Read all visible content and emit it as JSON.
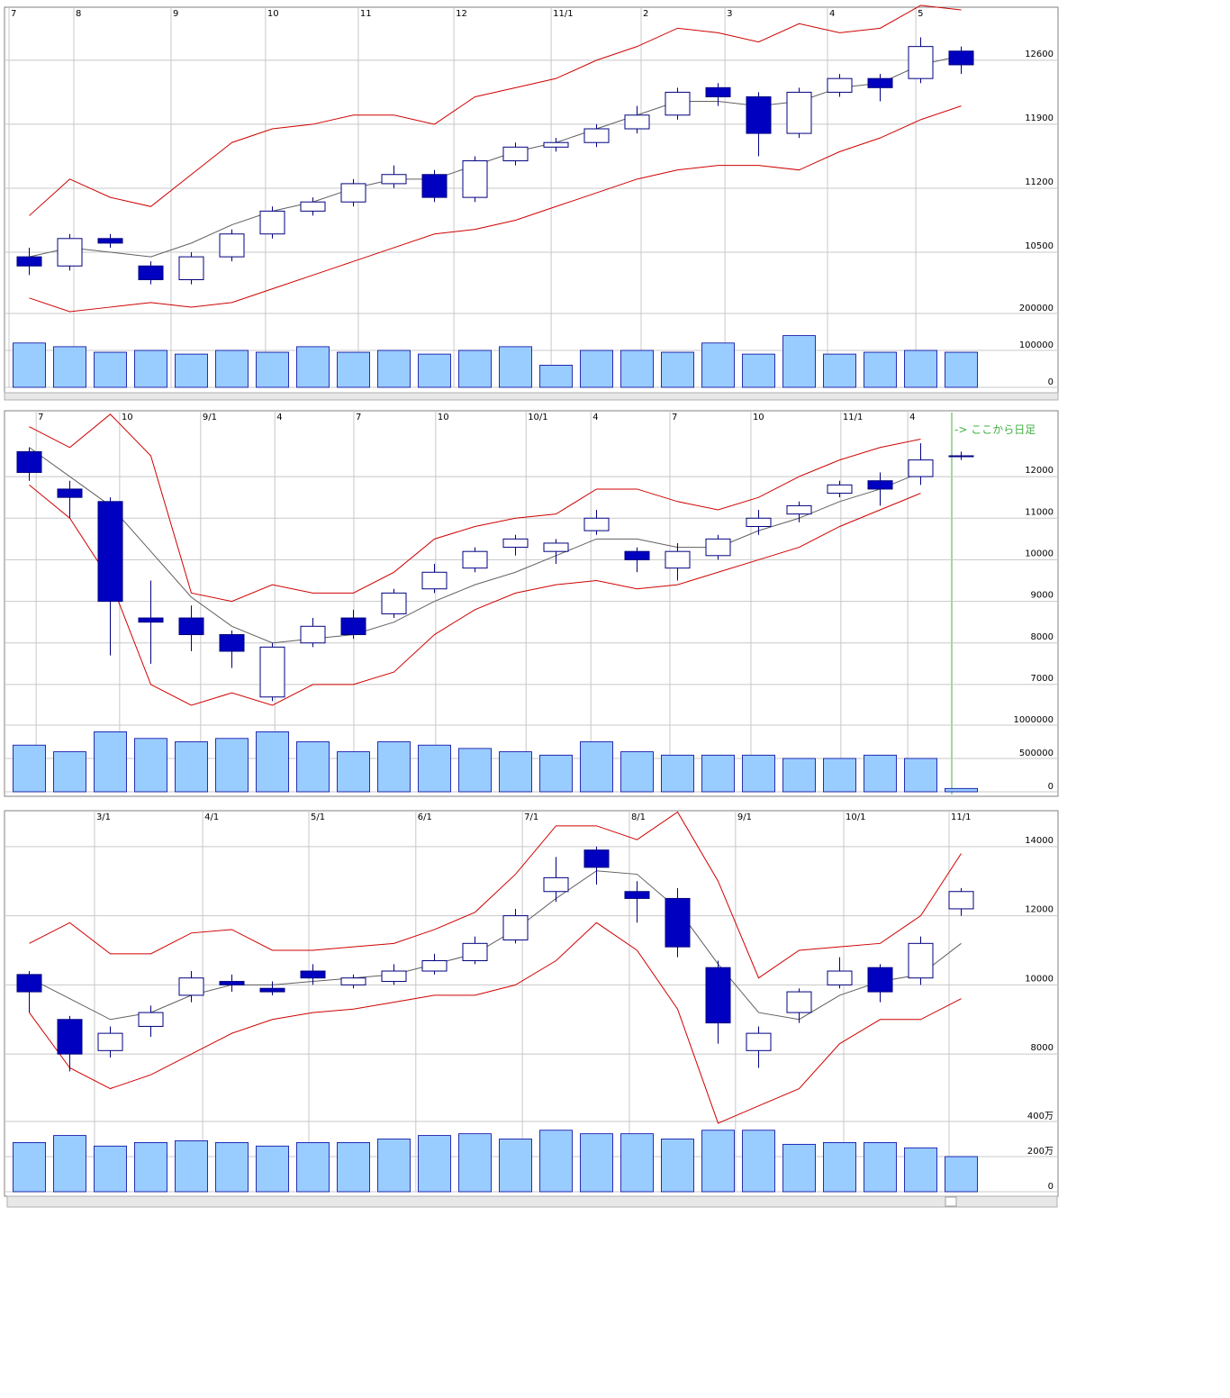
{
  "chart_data": [
    {
      "type": "candlestick",
      "xlim": [
        0,
        24
      ],
      "xticks": [
        {
          "value": 0,
          "label": "7"
        },
        {
          "value": 1.6,
          "label": "8"
        },
        {
          "value": 4.0,
          "label": "9"
        },
        {
          "value": 6.33,
          "label": "10"
        },
        {
          "value": 8.62,
          "label": "11"
        },
        {
          "value": 10.98,
          "label": "12"
        },
        {
          "value": 13.38,
          "label": "11/1"
        },
        {
          "value": 15.6,
          "label": "2"
        },
        {
          "value": 17.67,
          "label": "3"
        },
        {
          "value": 20.2,
          "label": "4"
        },
        {
          "value": 22.38,
          "label": "5"
        }
      ],
      "ylim": [
        9860,
        13180
      ],
      "yticks": [
        10500,
        11200,
        11900,
        12600
      ],
      "open": [
        10450,
        10350,
        10650,
        10350,
        10200,
        10450,
        10700,
        10950,
        11050,
        11250,
        11350,
        11100,
        11500,
        11650,
        11700,
        11850,
        12000,
        12300,
        12200,
        11800,
        12250,
        12400,
        12400,
        12700
      ],
      "high": [
        10550,
        10700,
        10700,
        10400,
        10500,
        10750,
        11000,
        11100,
        11300,
        11450,
        11400,
        11550,
        11700,
        11750,
        11900,
        12100,
        12300,
        12350,
        12250,
        12300,
        12450,
        12450,
        12850,
        12750
      ],
      "low": [
        10250,
        10300,
        10550,
        10150,
        10150,
        10400,
        10650,
        10900,
        11000,
        11200,
        11050,
        11050,
        11450,
        11600,
        11650,
        11800,
        11950,
        12100,
        11550,
        11750,
        12200,
        12150,
        12350,
        12450
      ],
      "close": [
        10350,
        10650,
        10600,
        10200,
        10450,
        10700,
        10950,
        11050,
        11250,
        11350,
        11100,
        11500,
        11650,
        11700,
        11850,
        12000,
        12250,
        12200,
        11800,
        12250,
        12400,
        12300,
        12750,
        12550
      ],
      "bands": [
        {
          "color": "#d00000",
          "values": [
            10900,
            11300,
            11100,
            11000,
            11350,
            11700,
            11850,
            11900,
            12000,
            12000,
            11900,
            12200,
            12300,
            12400,
            12600,
            12750,
            12950,
            12900,
            12800,
            13000,
            12900,
            12950,
            13200,
            13150
          ]
        },
        {
          "color": "#606060",
          "values": [
            10450,
            10550,
            10500,
            10450,
            10600,
            10800,
            10950,
            11050,
            11200,
            11300,
            11300,
            11450,
            11600,
            11700,
            11850,
            12000,
            12150,
            12150,
            12100,
            12150,
            12300,
            12350,
            12550,
            12650
          ]
        },
        {
          "color": "#d00000",
          "values": [
            10000,
            9850,
            9900,
            9950,
            9900,
            9950,
            10100,
            10250,
            10400,
            10550,
            10700,
            10750,
            10850,
            11000,
            11150,
            11300,
            11400,
            11450,
            11450,
            11400,
            11600,
            11750,
            11950,
            12100
          ]
        }
      ],
      "volume": {
        "color": "#99ccff",
        "ylim": [
          0,
          200000
        ],
        "yticks": [
          0,
          100000,
          200000
        ],
        "values": [
          120000,
          110000,
          95000,
          100000,
          90000,
          100000,
          95000,
          110000,
          95000,
          100000,
          90000,
          100000,
          110000,
          60000,
          100000,
          100000,
          95000,
          120000,
          90000,
          140000,
          90000,
          95000,
          100000,
          95000
        ]
      }
    },
    {
      "type": "candlestick",
      "xlim": [
        0,
        24
      ],
      "xticks": [
        {
          "value": 0.67,
          "label": "7"
        },
        {
          "value": 2.73,
          "label": "10"
        },
        {
          "value": 4.73,
          "label": "9/1"
        },
        {
          "value": 6.56,
          "label": "4"
        },
        {
          "value": 8.51,
          "label": "7"
        },
        {
          "value": 10.53,
          "label": "10"
        },
        {
          "value": 12.76,
          "label": "10/1"
        },
        {
          "value": 14.36,
          "label": "4"
        },
        {
          "value": 16.31,
          "label": "7"
        },
        {
          "value": 18.31,
          "label": "10"
        },
        {
          "value": 20.53,
          "label": "11/1"
        },
        {
          "value": 22.18,
          "label": "4"
        }
      ],
      "ylim": [
        6240,
        13540
      ],
      "yticks": [
        7000,
        8000,
        9000,
        10000,
        11000,
        12000
      ],
      "annotation": "-> ここから日足",
      "open": [
        12600,
        11700,
        11400,
        8600,
        8600,
        8200,
        6700,
        8000,
        8600,
        8700,
        9300,
        9800,
        10300,
        10200,
        10700,
        10200,
        9800,
        10100,
        10800,
        11100,
        11600,
        11900,
        12000,
        12500
      ],
      "high": [
        12700,
        11900,
        11500,
        9500,
        8900,
        8300,
        8000,
        8600,
        8800,
        9300,
        9900,
        10300,
        10600,
        10500,
        11200,
        10300,
        10400,
        10600,
        11200,
        11400,
        11900,
        12100,
        12800,
        12600
      ],
      "low": [
        11900,
        11000,
        7700,
        7500,
        7800,
        7400,
        6600,
        7900,
        8100,
        8600,
        9200,
        9700,
        10100,
        9900,
        10600,
        9700,
        9500,
        10000,
        10600,
        10900,
        11500,
        11300,
        11800,
        12400
      ],
      "close": [
        12100,
        11500,
        9000,
        8500,
        8200,
        7800,
        7900,
        8400,
        8200,
        9200,
        9700,
        10200,
        10500,
        10400,
        11000,
        10000,
        10200,
        10500,
        11000,
        11300,
        11800,
        11700,
        12400,
        12500
      ],
      "bands": [
        {
          "color": "#d00000",
          "values": [
            13200,
            12700,
            13500,
            12500,
            9200,
            9000,
            9400,
            9200,
            9200,
            9700,
            10500,
            10800,
            11000,
            11100,
            11700,
            11700,
            11400,
            11200,
            11500,
            12000,
            12400,
            12700,
            12900,
            null
          ]
        },
        {
          "color": "#606060",
          "values": [
            12700,
            12000,
            11300,
            10200,
            9100,
            8400,
            8000,
            8100,
            8200,
            8500,
            9000,
            9400,
            9700,
            10100,
            10500,
            10500,
            10300,
            10300,
            10700,
            11000,
            11400,
            11700,
            12100,
            null
          ]
        },
        {
          "color": "#d00000",
          "values": [
            11800,
            11000,
            9500,
            7000,
            6500,
            6800,
            6500,
            7000,
            7000,
            7300,
            8200,
            8800,
            9200,
            9400,
            9500,
            9300,
            9400,
            9700,
            10000,
            10300,
            10800,
            11200,
            11600,
            null
          ]
        }
      ],
      "volume": {
        "color": "#99ccff",
        "ylim": [
          0,
          1000000
        ],
        "yticks": [
          0,
          500000,
          1000000
        ],
        "values": [
          700000,
          600000,
          900000,
          800000,
          750000,
          800000,
          900000,
          750000,
          600000,
          750000,
          700000,
          650000,
          600000,
          550000,
          750000,
          600000,
          550000,
          550000,
          550000,
          500000,
          500000,
          550000,
          500000,
          50000
        ]
      }
    },
    {
      "type": "candlestick",
      "xlim": [
        0,
        24
      ],
      "xticks": [
        {
          "value": 2.11,
          "label": "3/1"
        },
        {
          "value": 4.78,
          "label": "4/1"
        },
        {
          "value": 7.4,
          "label": "5/1"
        },
        {
          "value": 10.04,
          "label": "6/1"
        },
        {
          "value": 12.67,
          "label": "7/1"
        },
        {
          "value": 15.31,
          "label": "8/1"
        },
        {
          "value": 17.93,
          "label": "9/1"
        },
        {
          "value": 20.6,
          "label": "10/1"
        },
        {
          "value": 23.2,
          "label": "11/1"
        }
      ],
      "ylim": [
        6050,
        14960
      ],
      "yticks": [
        8000,
        10000,
        12000,
        14000
      ],
      "open": [
        10300,
        9000,
        8100,
        8800,
        9700,
        10100,
        9900,
        10400,
        10000,
        10100,
        10400,
        10700,
        11300,
        12700,
        13900,
        12700,
        12500,
        10500,
        8100,
        9200,
        10000,
        10500,
        10200,
        12200
      ],
      "high": [
        10400,
        9100,
        8800,
        9400,
        10400,
        10300,
        10100,
        10600,
        10300,
        10600,
        10900,
        11400,
        12200,
        13700,
        14000,
        13000,
        12800,
        10700,
        8800,
        9900,
        10800,
        10600,
        11400,
        12800
      ],
      "low": [
        9200,
        7500,
        7900,
        8500,
        9500,
        9800,
        9700,
        10000,
        9900,
        10000,
        10300,
        10600,
        11200,
        12400,
        12900,
        11800,
        10800,
        8300,
        7600,
        8900,
        9900,
        9500,
        10000,
        12000
      ],
      "close": [
        9800,
        8000,
        8600,
        9200,
        10200,
        10000,
        9800,
        10200,
        10200,
        10400,
        10700,
        11200,
        12000,
        13100,
        13400,
        12500,
        11100,
        8900,
        8600,
        9800,
        10400,
        9800,
        11200,
        12700
      ],
      "bands": [
        {
          "color": "#d00000",
          "values": [
            11200,
            11800,
            10900,
            10900,
            11500,
            11600,
            11000,
            11000,
            11100,
            11200,
            11600,
            12100,
            13200,
            14600,
            14600,
            14200,
            15000,
            13000,
            10200,
            11000,
            11100,
            11200,
            12000,
            13800
          ]
        },
        {
          "color": "#606060",
          "values": [
            10200,
            9600,
            9000,
            9200,
            9700,
            10000,
            10000,
            10100,
            10200,
            10300,
            10600,
            10900,
            11600,
            12500,
            13300,
            13200,
            12200,
            10600,
            9200,
            9000,
            9700,
            10100,
            10300,
            11200
          ]
        },
        {
          "color": "#d00000",
          "values": [
            9200,
            7600,
            7000,
            7400,
            8000,
            8600,
            9000,
            9200,
            9300,
            9500,
            9700,
            9700,
            10000,
            10700,
            11800,
            11000,
            9300,
            6000,
            6500,
            7000,
            8300,
            9000,
            9000,
            9600
          ]
        }
      ],
      "volume": {
        "color": "#99ccff",
        "ylim": [
          0,
          4000000
        ],
        "yticks": [
          0,
          {
            "value": 2000000,
            "label": "200万"
          },
          {
            "value": 4000000,
            "label": "400万"
          }
        ],
        "values": [
          2800000,
          3200000,
          2600000,
          2800000,
          2900000,
          2800000,
          2600000,
          2800000,
          2800000,
          3000000,
          3200000,
          3300000,
          3000000,
          3500000,
          3300000,
          3300000,
          3000000,
          3500000,
          3500000,
          2700000,
          2800000,
          2800000,
          2500000,
          2000000
        ]
      }
    }
  ]
}
